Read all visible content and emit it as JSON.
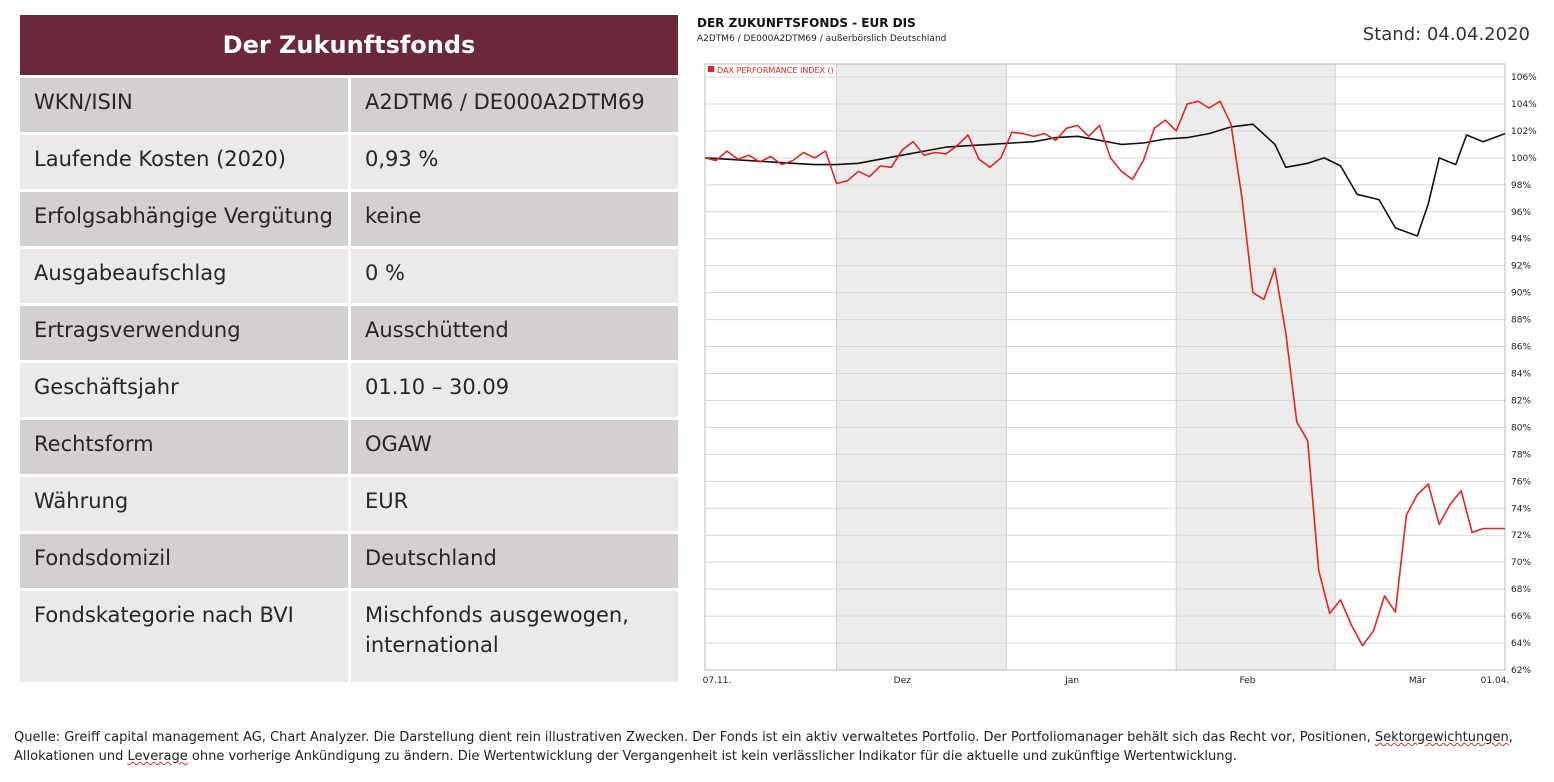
{
  "table": {
    "title": "Der Zukunftsfonds",
    "rows": [
      {
        "key": "WKN/ISIN",
        "value": "A2DTM6 / DE000A2DTM69"
      },
      {
        "key": "Laufende Kosten (2020)",
        "value": "0,93 %"
      },
      {
        "key": "Erfolgsabhängige Vergütung",
        "value": "keine"
      },
      {
        "key": "Ausgabeaufschlag",
        "value": "0 %"
      },
      {
        "key": "Ertragsverwendung",
        "value": "Ausschüttend"
      },
      {
        "key": "Geschäftsjahr",
        "value": "01.10 – 30.09"
      },
      {
        "key": "Rechtsform",
        "value": "OGAW"
      },
      {
        "key": "Währung",
        "value": "EUR"
      },
      {
        "key": "Fondsdomizil",
        "value": "Deutschland"
      },
      {
        "key": "Fondskategorie nach BVI",
        "value": "Mischfonds ausgewogen,\ninternational"
      }
    ]
  },
  "stand": "Stand: 04.04.2020",
  "footer": {
    "part1": "Quelle: Greiff capital management AG, Chart Analyzer. Die Darstellung dient rein illustrativen Zwecken. Der Fonds ist ein aktiv verwaltetes Portfolio. Der Portfoliomanager behält sich das Recht vor, Positionen, ",
    "part2": "Sektorgewichtungen",
    "part3": ", Allokationen und ",
    "part4": "Leverage",
    "part5": " ohne vorherige Ankündigung zu ändern. Die Wertentwicklung der Vergangenheit ist kein verlässlicher Indikator für die aktuelle und zukünftige Wertentwicklung."
  },
  "chart_data": {
    "type": "line",
    "title": "DER ZUKUNFTSFONDS - EUR DIS",
    "subtitle": "A2DTM6 / DE000A2DTM69 / außerbörslich Deutschland",
    "legend": [
      {
        "name": "DAX PERFORMANCE INDEX ()",
        "color": "#e3261f"
      }
    ],
    "x_tick_labels": [
      "07.11.",
      "Dez",
      "Jan",
      "Feb",
      "Mär",
      "01.04."
    ],
    "y_tick_labels": [
      "106%",
      "104%",
      "102%",
      "100%",
      "98%",
      "96%",
      "94%",
      "92%",
      "90%",
      "88%",
      "86%",
      "84%",
      "82%",
      "80%",
      "78%",
      "76%",
      "74%",
      "72%",
      "70%",
      "68%",
      "66%",
      "64%",
      "62%"
    ],
    "ylim": [
      62,
      106
    ],
    "y_axis": "right",
    "grid": true,
    "x_start": "2019-11-07",
    "x_end": "2020-04-01",
    "shaded_months": [
      "2019-12",
      "2020-02"
    ],
    "series": [
      {
        "name": "Der Zukunftsfonds",
        "color": "#111111",
        "x": [
          "2019-11-07",
          "2019-11-11",
          "2019-11-15",
          "2019-11-19",
          "2019-11-23",
          "2019-11-27",
          "2019-12-01",
          "2019-12-05",
          "2019-12-09",
          "2019-12-13",
          "2019-12-17",
          "2019-12-21",
          "2019-12-25",
          "2019-12-29",
          "2020-01-02",
          "2020-01-06",
          "2020-01-10",
          "2020-01-14",
          "2020-01-18",
          "2020-01-22",
          "2020-01-26",
          "2020-01-30",
          "2020-02-03",
          "2020-02-07",
          "2020-02-11",
          "2020-02-15",
          "2020-02-19",
          "2020-02-21",
          "2020-02-25",
          "2020-02-28",
          "2020-03-02",
          "2020-03-05",
          "2020-03-09",
          "2020-03-12",
          "2020-03-16",
          "2020-03-18",
          "2020-03-20",
          "2020-03-23",
          "2020-03-25",
          "2020-03-28",
          "2020-04-01"
        ],
        "y": [
          100.0,
          99.9,
          99.8,
          99.7,
          99.6,
          99.5,
          99.5,
          99.6,
          99.9,
          100.2,
          100.5,
          100.8,
          100.9,
          101.0,
          101.1,
          101.2,
          101.5,
          101.6,
          101.3,
          101.0,
          101.1,
          101.4,
          101.5,
          101.8,
          102.3,
          102.5,
          101.0,
          99.3,
          99.6,
          100.0,
          99.4,
          97.3,
          96.9,
          94.8,
          94.2,
          96.6,
          100.0,
          99.5,
          101.7,
          101.2,
          101.8
        ]
      },
      {
        "name": "DAX PERFORMANCE INDEX ()",
        "color": "#e3261f",
        "x": [
          "2019-11-07",
          "2019-11-09",
          "2019-11-11",
          "2019-11-13",
          "2019-11-15",
          "2019-11-17",
          "2019-11-19",
          "2019-11-21",
          "2019-11-23",
          "2019-11-25",
          "2019-11-27",
          "2019-11-29",
          "2019-12-01",
          "2019-12-03",
          "2019-12-05",
          "2019-12-07",
          "2019-12-09",
          "2019-12-11",
          "2019-12-13",
          "2019-12-15",
          "2019-12-17",
          "2019-12-19",
          "2019-12-21",
          "2019-12-23",
          "2019-12-25",
          "2019-12-27",
          "2019-12-29",
          "2019-12-31",
          "2020-01-02",
          "2020-01-04",
          "2020-01-06",
          "2020-01-08",
          "2020-01-10",
          "2020-01-12",
          "2020-01-14",
          "2020-01-16",
          "2020-01-18",
          "2020-01-20",
          "2020-01-22",
          "2020-01-24",
          "2020-01-26",
          "2020-01-28",
          "2020-01-30",
          "2020-02-01",
          "2020-02-03",
          "2020-02-05",
          "2020-02-07",
          "2020-02-09",
          "2020-02-11",
          "2020-02-13",
          "2020-02-15",
          "2020-02-17",
          "2020-02-19",
          "2020-02-21",
          "2020-02-23",
          "2020-02-25",
          "2020-02-27",
          "2020-02-29",
          "2020-03-02",
          "2020-03-04",
          "2020-03-06",
          "2020-03-08",
          "2020-03-10",
          "2020-03-12",
          "2020-03-14",
          "2020-03-16",
          "2020-03-18",
          "2020-03-20",
          "2020-03-22",
          "2020-03-24",
          "2020-03-26",
          "2020-03-28",
          "2020-03-30",
          "2020-04-01"
        ],
        "y": [
          100.0,
          99.8,
          100.5,
          99.9,
          100.2,
          99.7,
          100.1,
          99.5,
          99.8,
          100.4,
          100.0,
          100.5,
          98.1,
          98.3,
          99.0,
          98.6,
          99.4,
          99.3,
          100.6,
          101.2,
          100.2,
          100.4,
          100.3,
          100.9,
          101.7,
          99.9,
          99.3,
          100.0,
          101.9,
          101.8,
          101.6,
          101.8,
          101.3,
          102.2,
          102.4,
          101.6,
          102.4,
          100.0,
          99.0,
          98.4,
          99.8,
          102.2,
          102.8,
          102.0,
          104.0,
          104.2,
          103.7,
          104.2,
          102.5,
          97.0,
          90.0,
          89.5,
          91.8,
          87.0,
          80.4,
          79.0,
          69.4,
          66.2,
          67.2,
          65.3,
          63.8,
          64.9,
          67.5,
          66.3,
          73.5,
          75.0,
          75.8,
          72.8,
          74.3,
          75.3,
          72.2,
          72.5,
          72.5,
          72.5
        ]
      }
    ]
  },
  "colors": {
    "header_bg": "#6b2838",
    "row_shade": "#d5cfd1",
    "row_light": "#ece9ea",
    "fund_line": "#111111",
    "dax_line": "#e3261f"
  }
}
